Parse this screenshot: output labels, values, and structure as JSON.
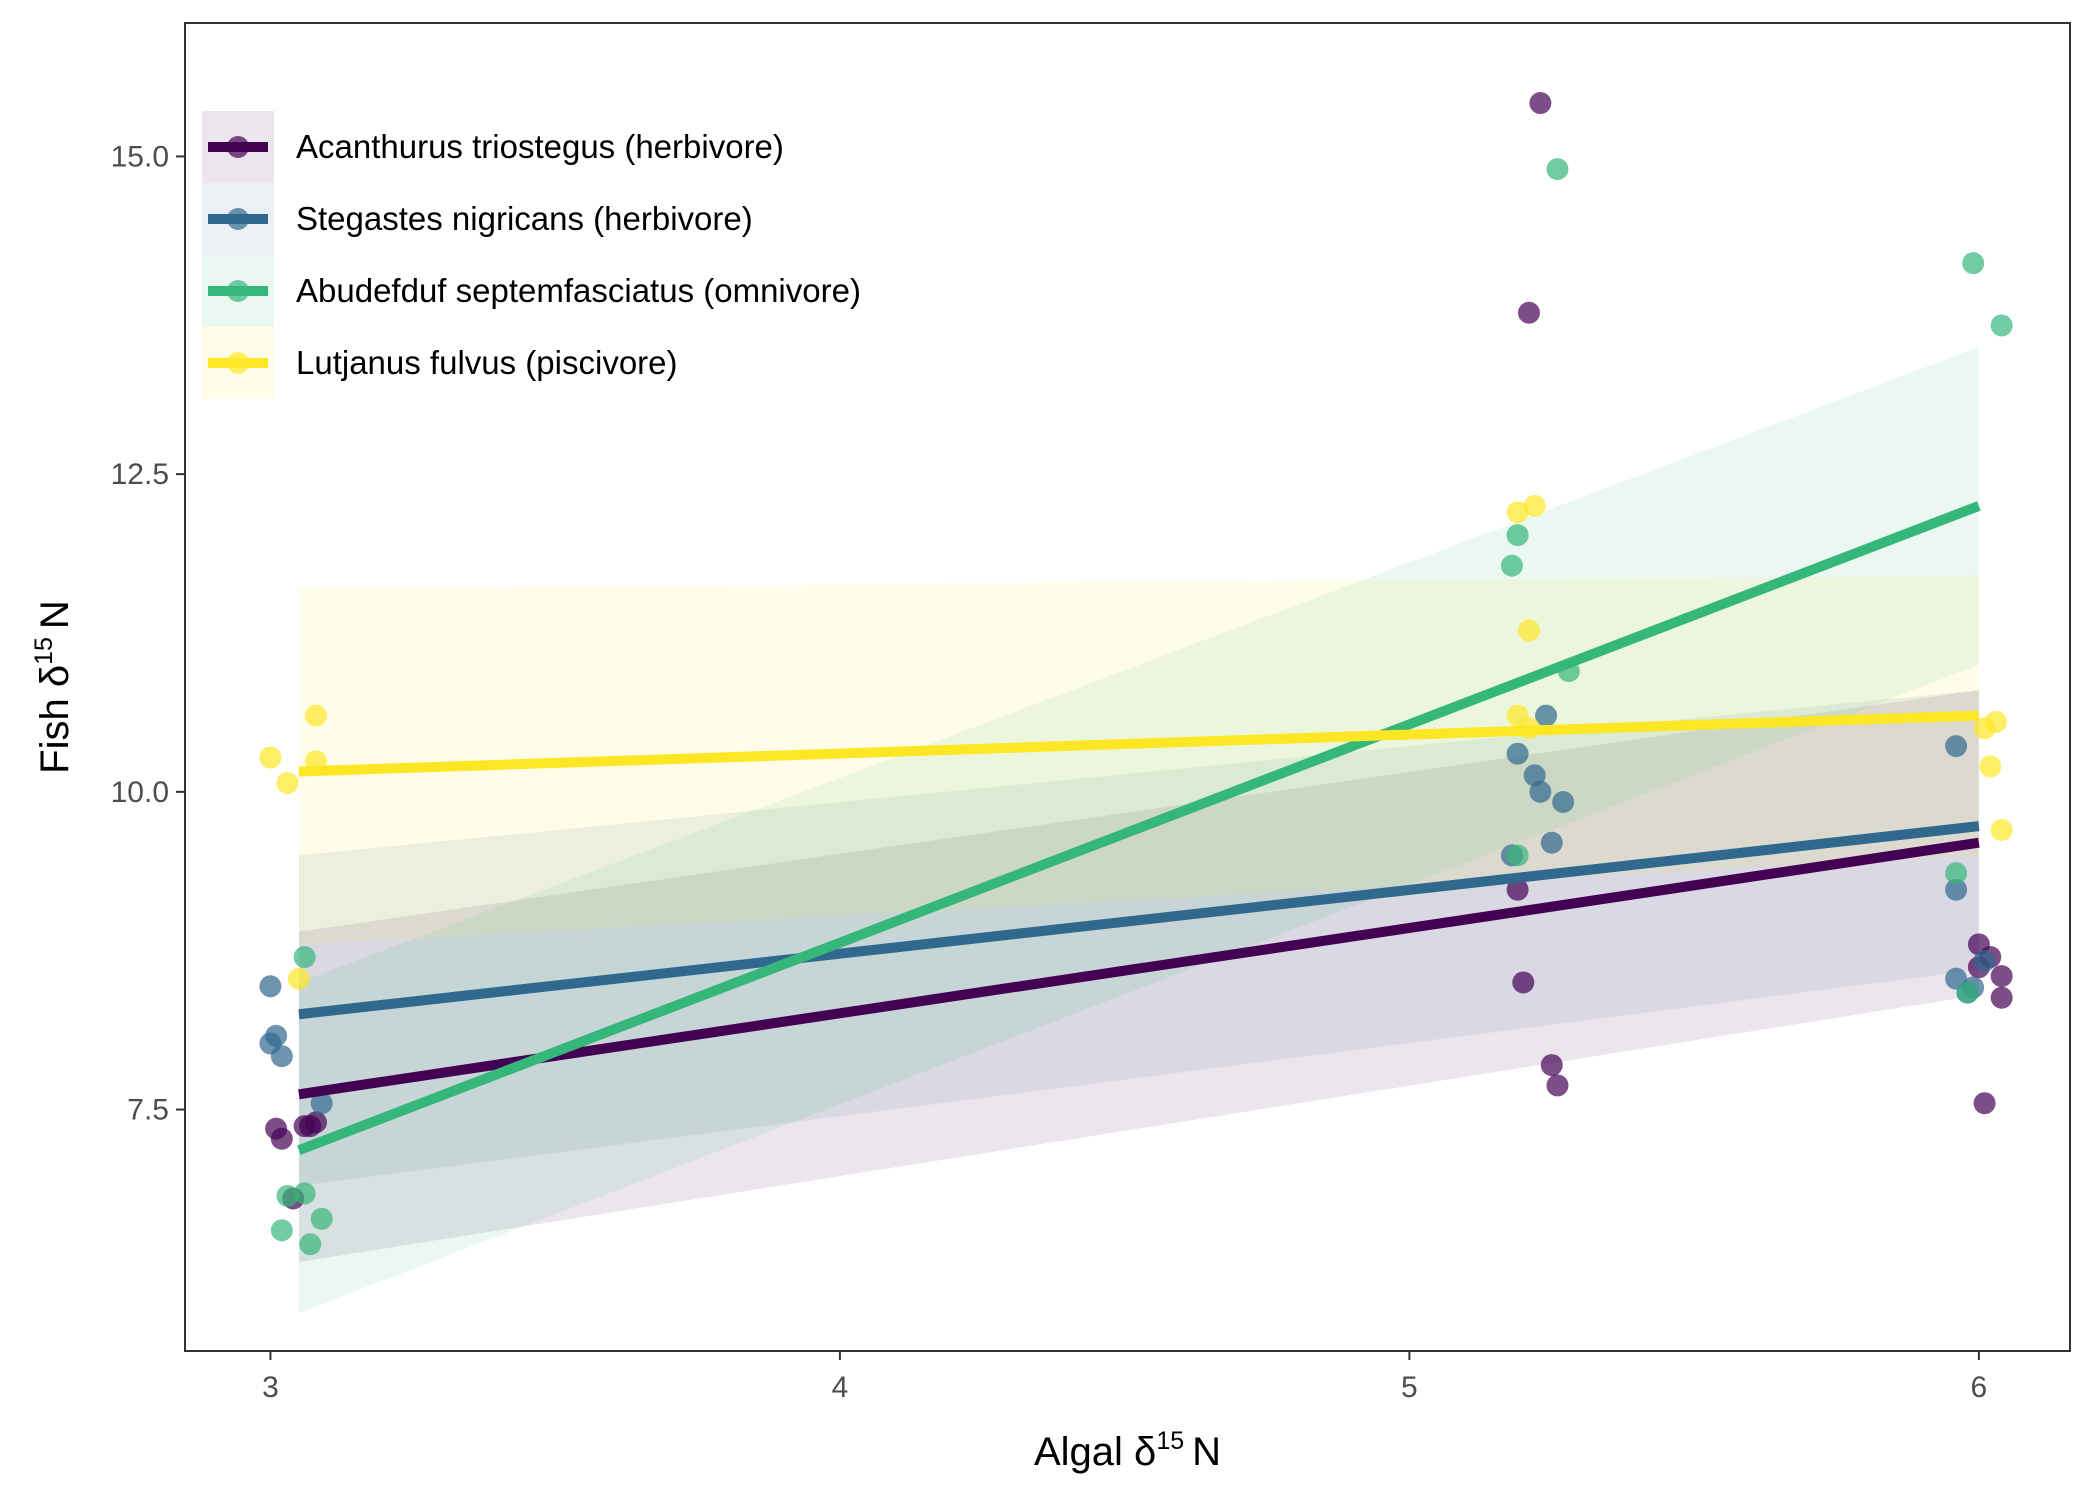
{
  "chart_data": {
    "type": "scatter",
    "title": "",
    "xlabel": {
      "prefix": "Algal δ",
      "sup": "15",
      "suffix": "N"
    },
    "ylabel": {
      "prefix": "Fish δ",
      "sup": "15",
      "suffix": "N"
    },
    "xlim": [
      2.85,
      6.16
    ],
    "ylim": [
      5.6,
      16.05
    ],
    "x_ticks": [
      3,
      4,
      5,
      6
    ],
    "x_tick_labels": [
      "3",
      "4",
      "5",
      "6"
    ],
    "y_ticks": [
      7.5,
      10.0,
      12.5,
      15.0
    ],
    "y_tick_labels": [
      "7.5",
      "10.0",
      "12.5",
      "15.0"
    ],
    "grid": false,
    "legend_position": "top-left",
    "series": [
      {
        "name": "Acanthurus triostegus (herbivore)",
        "color": "#440154",
        "points": [
          [
            3.01,
            7.35
          ],
          [
            3.02,
            7.27
          ],
          [
            3.04,
            6.8
          ],
          [
            3.06,
            7.37
          ],
          [
            3.07,
            7.37
          ],
          [
            3.08,
            7.4
          ],
          [
            5.19,
            9.23
          ],
          [
            5.2,
            8.5
          ],
          [
            5.21,
            13.77
          ],
          [
            5.23,
            15.42
          ],
          [
            5.25,
            7.85
          ],
          [
            5.26,
            7.69
          ],
          [
            6.0,
            8.8
          ],
          [
            6.0,
            8.62
          ],
          [
            6.01,
            7.55
          ],
          [
            6.02,
            8.7
          ],
          [
            6.04,
            8.55
          ],
          [
            6.04,
            8.38
          ]
        ],
        "fit": {
          "x": [
            3.05,
            6.0
          ],
          "y": [
            7.62,
            9.6
          ]
        },
        "band": {
          "lower": [
            6.3,
            8.4
          ],
          "upper": [
            8.9,
            10.8
          ]
        }
      },
      {
        "name": "Stegastes nigricans (herbivore)",
        "color": "#31688e",
        "points": [
          [
            3.0,
            8.47
          ],
          [
            3.0,
            8.02
          ],
          [
            3.01,
            8.08
          ],
          [
            3.02,
            7.92
          ],
          [
            3.09,
            7.55
          ],
          [
            5.18,
            9.5
          ],
          [
            5.19,
            10.3
          ],
          [
            5.22,
            10.13
          ],
          [
            5.23,
            10.0
          ],
          [
            5.24,
            10.6
          ],
          [
            5.25,
            9.6
          ],
          [
            5.27,
            9.92
          ],
          [
            5.96,
            10.36
          ],
          [
            5.96,
            9.23
          ],
          [
            5.96,
            8.53
          ],
          [
            5.98,
            8.42
          ],
          [
            5.99,
            8.46
          ],
          [
            6.01,
            8.67
          ]
        ],
        "fit": {
          "x": [
            3.05,
            6.0
          ],
          "y": [
            8.25,
            9.73
          ]
        },
        "band": {
          "lower": [
            6.9,
            8.6
          ],
          "upper": [
            9.5,
            10.8
          ]
        }
      },
      {
        "name": "Abudefduf septemfasciatus (omnivore)",
        "color": "#35b779",
        "points": [
          [
            3.02,
            6.55
          ],
          [
            3.03,
            6.82
          ],
          [
            3.06,
            8.7
          ],
          [
            3.06,
            6.84
          ],
          [
            3.07,
            6.44
          ],
          [
            3.09,
            6.64
          ],
          [
            5.18,
            11.78
          ],
          [
            5.19,
            12.02
          ],
          [
            5.19,
            9.5
          ],
          [
            5.26,
            14.9
          ],
          [
            5.28,
            10.95
          ],
          [
            5.96,
            9.36
          ],
          [
            5.98,
            8.42
          ],
          [
            5.99,
            14.16
          ],
          [
            6.04,
            13.67
          ]
        ],
        "fit": {
          "x": [
            3.05,
            6.0
          ],
          "y": [
            7.18,
            12.25
          ]
        },
        "band": {
          "lower": [
            5.9,
            11.0
          ],
          "upper": [
            8.5,
            13.5
          ]
        }
      },
      {
        "name": "Lutjanus fulvus (piscivore)",
        "color": "#fde725",
        "points": [
          [
            3.0,
            10.27
          ],
          [
            3.03,
            10.07
          ],
          [
            3.05,
            8.53
          ],
          [
            3.08,
            10.6
          ],
          [
            3.08,
            10.24
          ],
          [
            5.19,
            12.2
          ],
          [
            5.19,
            10.6
          ],
          [
            5.21,
            11.27
          ],
          [
            5.21,
            10.5
          ],
          [
            5.22,
            12.25
          ],
          [
            6.01,
            10.5
          ],
          [
            6.02,
            10.2
          ],
          [
            6.03,
            10.55
          ],
          [
            6.04,
            9.7
          ]
        ],
        "fit": {
          "x": [
            3.05,
            6.0
          ],
          "y": [
            10.16,
            10.6
          ]
        },
        "band": {
          "lower": [
            8.8,
            9.5
          ],
          "upper": [
            11.6,
            11.7
          ]
        }
      }
    ]
  }
}
